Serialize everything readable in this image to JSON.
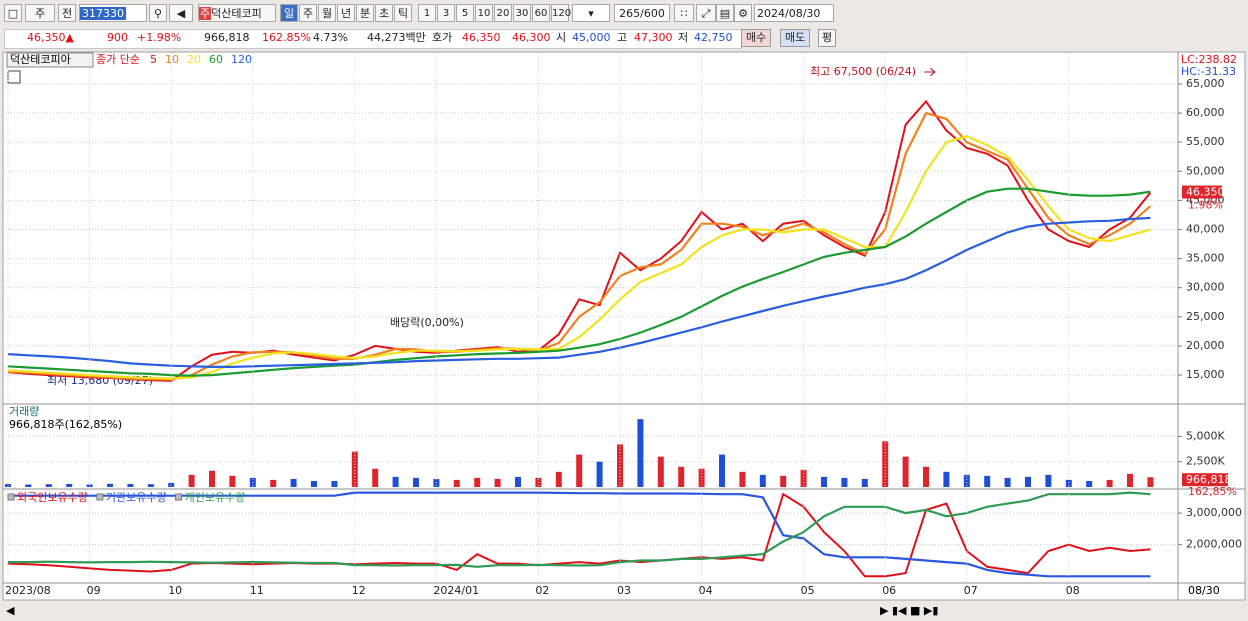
{
  "toolbar": {
    "market": "주",
    "prev": "전",
    "code": "317330",
    "name": "덕산테코피",
    "periods": [
      "일",
      "주",
      "월",
      "년",
      "분",
      "초",
      "틱"
    ],
    "intervals": [
      "1",
      "3",
      "5",
      "10",
      "20",
      "30",
      "60",
      "120"
    ],
    "count": "265",
    "max": "/600",
    "date": "2024/08/30"
  },
  "quote": {
    "price": "46,350▲",
    "change": "900",
    "rate": "+1.98%",
    "volume": "966,818",
    "volume_rate": "162.85%",
    "turnover": "4.73%",
    "amount": "44,273백만",
    "ask_label": "호가",
    "ask": "46,350",
    "bid": "46,300",
    "open_label": "시",
    "open": "45,000",
    "high_label": "고",
    "high": "47,300",
    "low_label": "저",
    "low": "42,750",
    "buy": "매수",
    "sell": "매도",
    "avg": "평"
  },
  "chart_data": [
    {
      "type": "line",
      "title": "덕산테코피아",
      "legend_prefix": "종가 단순",
      "high_label": "최고 67,500 (06/24)",
      "low_label": "최저 13,680 (09/27)",
      "dividend_label": "배당락(0,00%)",
      "lc_label": "LC:238.82",
      "hc_label": "HC:-31.33",
      "last_label": "46,350",
      "change_label": "1.98%",
      "grid": true,
      "ylim": [
        10200,
        69800
      ],
      "yticks": [
        {
          "value": 15000,
          "label": "15,000"
        },
        {
          "value": 20000,
          "label": "20,000"
        },
        {
          "value": 25000,
          "label": "25,000"
        },
        {
          "value": 30000,
          "label": "30,000"
        },
        {
          "value": 35000,
          "label": "35,000"
        },
        {
          "value": 40000,
          "label": "40,000"
        },
        {
          "value": 45000,
          "label": "45,000"
        },
        {
          "value": 50000,
          "label": "50,000"
        },
        {
          "value": 55000,
          "label": "55,000"
        },
        {
          "value": 60000,
          "label": "60,000"
        },
        {
          "value": 65000,
          "label": "65,000"
        }
      ],
      "series": [
        {
          "name": "5",
          "color": "#e0101a",
          "values": [
            15500,
            15200,
            15000,
            14800,
            14600,
            14500,
            14300,
            14100,
            14000,
            16500,
            18500,
            19000,
            18800,
            19200,
            18500,
            18000,
            17500,
            18500,
            20000,
            19500,
            19000,
            18800,
            19200,
            19500,
            19800,
            19000,
            19200,
            22000,
            28000,
            27000,
            36000,
            33000,
            35000,
            38000,
            43000,
            40000,
            41000,
            38000,
            41000,
            41500,
            39000,
            37000,
            35500,
            43000,
            58000,
            62000,
            57000,
            54000,
            53000,
            51000,
            45000,
            40000,
            38000,
            37000,
            40000,
            42000,
            46350
          ]
        },
        {
          "name": "10",
          "color": "#f08020",
          "values": [
            15600,
            15400,
            15200,
            15000,
            14800,
            14600,
            14400,
            14300,
            14200,
            15000,
            16800,
            18200,
            18900,
            19000,
            18900,
            18300,
            17800,
            17800,
            18500,
            19500,
            19400,
            19000,
            19000,
            19300,
            19600,
            19500,
            19200,
            20500,
            25000,
            27500,
            32000,
            33500,
            34000,
            36500,
            41000,
            41000,
            40500,
            39000,
            40000,
            41000,
            39500,
            37500,
            35800,
            40000,
            53000,
            60000,
            59000,
            55000,
            53500,
            52000,
            47000,
            42000,
            39000,
            37500,
            39000,
            41000,
            44000
          ]
        },
        {
          "name": "20",
          "color": "#f2e21c",
          "values": [
            15800,
            15600,
            15400,
            15200,
            15000,
            14800,
            14600,
            14500,
            14400,
            14600,
            15500,
            17000,
            18000,
            18700,
            18900,
            18600,
            18200,
            17900,
            18200,
            18800,
            19200,
            19200,
            19100,
            19200,
            19400,
            19500,
            19400,
            19500,
            21500,
            24500,
            28000,
            31000,
            32500,
            34000,
            37000,
            39000,
            40000,
            40000,
            39500,
            40000,
            40000,
            38500,
            37000,
            37000,
            43000,
            50000,
            55000,
            56000,
            54500,
            52500,
            48500,
            44000,
            40000,
            38500,
            38000,
            39000,
            40000
          ]
        },
        {
          "name": "60",
          "color": "#1a9a30",
          "values": [
            16500,
            16300,
            16100,
            15900,
            15700,
            15500,
            15300,
            15200,
            15000,
            14900,
            15000,
            15300,
            15600,
            15900,
            16200,
            16400,
            16600,
            16800,
            17200,
            17600,
            17900,
            18200,
            18400,
            18600,
            18700,
            18800,
            19000,
            19200,
            19700,
            20300,
            21200,
            22300,
            23600,
            25000,
            26800,
            28600,
            30200,
            31500,
            32700,
            34000,
            35300,
            36000,
            36500,
            37000,
            38800,
            41000,
            43000,
            45000,
            46500,
            47000,
            47000,
            46500,
            46000,
            45800,
            45800,
            46000,
            46500
          ]
        },
        {
          "name": "120",
          "color": "#2a5ee0",
          "values": [
            18600,
            18400,
            18200,
            18000,
            17700,
            17400,
            17000,
            16800,
            16600,
            16500,
            16400,
            16400,
            16500,
            16600,
            16700,
            16800,
            16900,
            17000,
            17100,
            17200,
            17400,
            17500,
            17600,
            17700,
            17800,
            17800,
            17900,
            18000,
            18500,
            19000,
            19700,
            20500,
            21400,
            22300,
            23200,
            24200,
            25100,
            26000,
            26900,
            27700,
            28500,
            29200,
            30000,
            30600,
            31500,
            33000,
            34700,
            36500,
            38000,
            39500,
            40500,
            41000,
            41200,
            41400,
            41500,
            41800,
            42000
          ]
        }
      ]
    },
    {
      "type": "bar",
      "title": "거래량",
      "subtitle": "966,818주(162,85%)",
      "last_label": "966,818",
      "rate_label": "162,85%",
      "grid": true,
      "ylim": [
        0,
        8000000
      ],
      "yticks": [
        {
          "value": 2500000,
          "label": "2,500K"
        },
        {
          "value": 5000000,
          "label": "5,000K"
        }
      ],
      "values": [
        300000,
        250000,
        280000,
        300000,
        250000,
        320000,
        300000,
        280000,
        400000,
        1200000,
        1600000,
        1100000,
        900000,
        700000,
        800000,
        600000,
        600000,
        3500000,
        1800000,
        1000000,
        900000,
        800000,
        700000,
        900000,
        800000,
        1000000,
        900000,
        1500000,
        3200000,
        2500000,
        4200000,
        6700000,
        3000000,
        2000000,
        1800000,
        3200000,
        1500000,
        1200000,
        1100000,
        1700000,
        1000000,
        900000,
        800000,
        4500000,
        3000000,
        2000000,
        1500000,
        1200000,
        1100000,
        900000,
        1000000,
        1200000,
        700000,
        600000,
        700000,
        1300000,
        966818
      ],
      "colors": [
        "#1e4fd6",
        "#1e4fd6",
        "#1e4fd6",
        "#1e4fd6",
        "#1e4fd6",
        "#1e4fd6",
        "#1e4fd6",
        "#1e4fd6",
        "#1e4fd6",
        "#e0242b",
        "#e0242b",
        "#e0242b",
        "#1e4fd6",
        "#e0242b",
        "#1e4fd6",
        "#1e4fd6",
        "#1e4fd6",
        "#e0242b",
        "#e0242b",
        "#1e4fd6",
        "#1e4fd6",
        "#1e4fd6",
        "#e0242b",
        "#e0242b",
        "#e0242b",
        "#1e4fd6",
        "#e0242b",
        "#e0242b",
        "#e0242b",
        "#1e4fd6",
        "#e0242b",
        "#1e4fd6",
        "#e0242b",
        "#e0242b",
        "#e0242b",
        "#1e4fd6",
        "#e0242b",
        "#1e4fd6",
        "#e0242b",
        "#e0242b",
        "#1e4fd6",
        "#1e4fd6",
        "#1e4fd6",
        "#e0242b",
        "#e0242b",
        "#e0242b",
        "#1e4fd6",
        "#1e4fd6",
        "#1e4fd6",
        "#1e4fd6",
        "#1e4fd6",
        "#1e4fd6",
        "#1e4fd6",
        "#1e4fd6",
        "#e0242b",
        "#e0242b",
        "#e0242b"
      ]
    },
    {
      "type": "line",
      "grid": true,
      "ylim": [
        850000,
        3700000
      ],
      "end_label": "08/30",
      "yticks": [
        {
          "value": 2000000,
          "label": "2,000,000"
        },
        {
          "value": 3000000,
          "label": "3,000,000"
        }
      ],
      "categories": [
        "2023/08",
        null,
        null,
        null,
        "09",
        null,
        null,
        null,
        "10",
        null,
        null,
        null,
        "11",
        null,
        null,
        null,
        null,
        "12",
        null,
        null,
        null,
        "2024/01",
        null,
        null,
        null,
        null,
        "02",
        null,
        null,
        null,
        "03",
        null,
        null,
        null,
        "04",
        null,
        null,
        null,
        null,
        "05",
        null,
        null,
        null,
        "06",
        null,
        null,
        null,
        "07",
        null,
        null,
        null,
        null,
        "08",
        null,
        null,
        null,
        null
      ],
      "series": [
        {
          "name": "외국인보유수량",
          "color": "#e0101a",
          "values": [
            1400000,
            1380000,
            1350000,
            1300000,
            1250000,
            1200000,
            1180000,
            1150000,
            1200000,
            1400000,
            1420000,
            1400000,
            1380000,
            1400000,
            1420000,
            1400000,
            1400000,
            1380000,
            1400000,
            1420000,
            1400000,
            1400000,
            1200000,
            1700000,
            1400000,
            1400000,
            1350000,
            1400000,
            1450000,
            1400000,
            1500000,
            1450000,
            1500000,
            1550000,
            1600000,
            1550000,
            1600000,
            1500000,
            3600000,
            3200000,
            2400000,
            1800000,
            1000000,
            1000000,
            1100000,
            3100000,
            3300000,
            1800000,
            1300000,
            1200000,
            1100000,
            1800000,
            2000000,
            1800000,
            1900000,
            1800000,
            1850000
          ]
        },
        {
          "name": "기관보유수량",
          "color": "#2a56e0",
          "values": [
            3550000,
            3550000,
            3550000,
            3550000,
            3550000,
            3550000,
            3550000,
            3550000,
            3550000,
            3550000,
            3550000,
            3550000,
            3550000,
            3550000,
            3550000,
            3550000,
            3550000,
            3650000,
            3650000,
            3650000,
            3650000,
            3650000,
            3650000,
            3650000,
            3650000,
            3650000,
            3650000,
            3640000,
            3630000,
            3630000,
            3620000,
            3620000,
            3620000,
            3620000,
            3610000,
            3600000,
            3600000,
            3500000,
            2300000,
            2200000,
            1700000,
            1600000,
            1600000,
            1600000,
            1550000,
            1500000,
            1450000,
            1400000,
            1200000,
            1100000,
            1050000,
            1000000,
            1000000,
            1000000,
            1000000,
            1000000,
            1000000
          ]
        },
        {
          "name": "개인보유수량",
          "color": "#2e9a55",
          "values": [
            1450000,
            1450000,
            1460000,
            1450000,
            1440000,
            1450000,
            1450000,
            1460000,
            1450000,
            1440000,
            1430000,
            1440000,
            1450000,
            1440000,
            1430000,
            1420000,
            1420000,
            1350000,
            1350000,
            1340000,
            1350000,
            1350000,
            1360000,
            1300000,
            1350000,
            1350000,
            1360000,
            1350000,
            1340000,
            1350000,
            1450000,
            1500000,
            1500000,
            1550000,
            1550000,
            1600000,
            1650000,
            1700000,
            2100000,
            2400000,
            2900000,
            3200000,
            3200000,
            3200000,
            3000000,
            3100000,
            2900000,
            3000000,
            3200000,
            3300000,
            3400000,
            3600000,
            3600000,
            3600000,
            3600000,
            3650000,
            3600000
          ]
        }
      ]
    }
  ]
}
